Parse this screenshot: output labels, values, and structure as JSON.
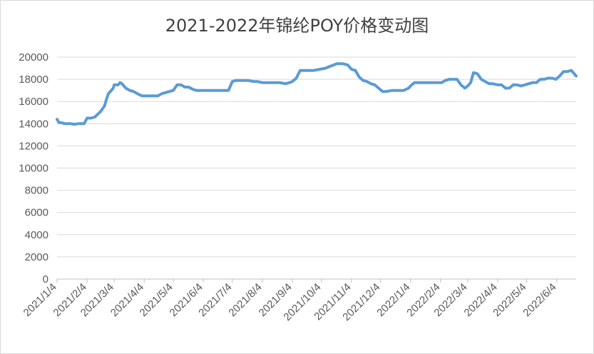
{
  "chart_data": {
    "type": "line",
    "title": "2021-2022年锦纶POY价格变动图",
    "xlabel": "",
    "ylabel": "",
    "ylim": [
      0,
      20000
    ],
    "yticks": [
      0,
      2000,
      4000,
      6000,
      8000,
      10000,
      12000,
      14000,
      16000,
      18000,
      20000
    ],
    "xticks": [
      "2021/1/4",
      "2021/2/4",
      "2021/3/4",
      "2021/4/4",
      "2021/5/4",
      "2021/6/4",
      "2021/7/4",
      "2021/8/4",
      "2021/9/4",
      "2021/10/4",
      "2021/11/4",
      "2021/12/4",
      "2022/1/4",
      "2022/2/4",
      "2022/3/4",
      "2022/4/4",
      "2022/5/4",
      "2022/6/4"
    ],
    "xlim": [
      "2021-01-04",
      "2022-06-24"
    ],
    "grid": "horizontal",
    "color": "#5b9bd5",
    "series": [
      {
        "x": [
          "2021-01-04",
          "2021-01-06",
          "2021-01-08",
          "2021-01-12",
          "2021-01-18",
          "2021-01-22",
          "2021-01-26",
          "2021-01-28",
          "2021-02-01",
          "2021-02-04",
          "2021-02-08",
          "2021-02-12",
          "2021-02-18",
          "2021-02-22",
          "2021-02-24",
          "2021-02-26",
          "2021-03-01",
          "2021-03-03",
          "2021-03-04",
          "2021-03-08",
          "2021-03-10",
          "2021-03-12",
          "2021-03-16",
          "2021-03-20",
          "2021-03-24",
          "2021-03-28",
          "2021-04-02",
          "2021-04-06",
          "2021-04-10",
          "2021-04-14",
          "2021-04-18",
          "2021-04-22",
          "2021-04-26",
          "2021-04-30",
          "2021-05-04",
          "2021-05-08",
          "2021-05-12",
          "2021-05-16",
          "2021-05-20",
          "2021-05-24",
          "2021-05-28",
          "2021-06-01",
          "2021-06-06",
          "2021-06-10",
          "2021-06-14",
          "2021-06-18",
          "2021-06-22",
          "2021-06-26",
          "2021-06-30",
          "2021-07-04",
          "2021-07-08",
          "2021-07-14",
          "2021-07-20",
          "2021-07-26",
          "2021-07-30",
          "2021-08-04",
          "2021-08-10",
          "2021-08-16",
          "2021-08-22",
          "2021-08-28",
          "2021-09-01",
          "2021-09-04",
          "2021-09-08",
          "2021-09-12",
          "2021-09-16",
          "2021-09-20",
          "2021-09-26",
          "2021-10-02",
          "2021-10-08",
          "2021-10-14",
          "2021-10-20",
          "2021-10-26",
          "2021-10-31",
          "2021-11-04",
          "2021-11-08",
          "2021-11-12",
          "2021-11-16",
          "2021-11-20",
          "2021-11-24",
          "2021-11-28",
          "2021-12-02",
          "2021-12-06",
          "2021-12-10",
          "2021-12-16",
          "2021-12-22",
          "2021-12-28",
          "2022-01-02",
          "2022-01-04",
          "2022-01-08",
          "2022-01-14",
          "2022-01-20",
          "2022-01-26",
          "2022-02-01",
          "2022-02-05",
          "2022-02-09",
          "2022-02-13",
          "2022-02-17",
          "2022-02-21",
          "2022-02-25",
          "2022-03-01",
          "2022-03-04",
          "2022-03-07",
          "2022-03-10",
          "2022-03-14",
          "2022-03-18",
          "2022-03-22",
          "2022-03-26",
          "2022-03-30",
          "2022-04-04",
          "2022-04-08",
          "2022-04-12",
          "2022-04-16",
          "2022-04-20",
          "2022-04-24",
          "2022-04-28",
          "2022-05-02",
          "2022-05-06",
          "2022-05-10",
          "2022-05-14",
          "2022-05-18",
          "2022-05-22",
          "2022-05-26",
          "2022-05-30",
          "2022-06-03",
          "2022-06-07",
          "2022-06-11",
          "2022-06-15",
          "2022-06-19",
          "2022-06-24"
        ],
        "y": [
          14400,
          14100,
          14100,
          14000,
          14000,
          13950,
          14000,
          14000,
          14000,
          14500,
          14500,
          14600,
          15100,
          15600,
          16200,
          16700,
          17000,
          17200,
          17500,
          17500,
          17700,
          17600,
          17200,
          17000,
          16900,
          16700,
          16500,
          16500,
          16500,
          16500,
          16500,
          16700,
          16800,
          16900,
          17000,
          17500,
          17500,
          17300,
          17300,
          17100,
          17000,
          17000,
          17000,
          17000,
          17000,
          17000,
          17000,
          17000,
          17000,
          17800,
          17900,
          17900,
          17900,
          17800,
          17800,
          17700,
          17700,
          17700,
          17700,
          17600,
          17700,
          17800,
          18100,
          18800,
          18800,
          18800,
          18800,
          18900,
          19000,
          19200,
          19400,
          19400,
          19300,
          18900,
          18800,
          18200,
          17900,
          17800,
          17600,
          17500,
          17200,
          16900,
          16900,
          17000,
          17000,
          17000,
          17200,
          17400,
          17700,
          17700,
          17700,
          17700,
          17700,
          17700,
          17900,
          18000,
          18000,
          18000,
          17500,
          17200,
          17400,
          17700,
          18600,
          18500,
          18000,
          17800,
          17600,
          17600,
          17500,
          17500,
          17200,
          17200,
          17500,
          17500,
          17400,
          17500,
          17600,
          17700,
          17700,
          18000,
          18000,
          18100,
          18100,
          18000,
          18300,
          18700,
          18700,
          18800,
          18300
        ]
      }
    ]
  }
}
